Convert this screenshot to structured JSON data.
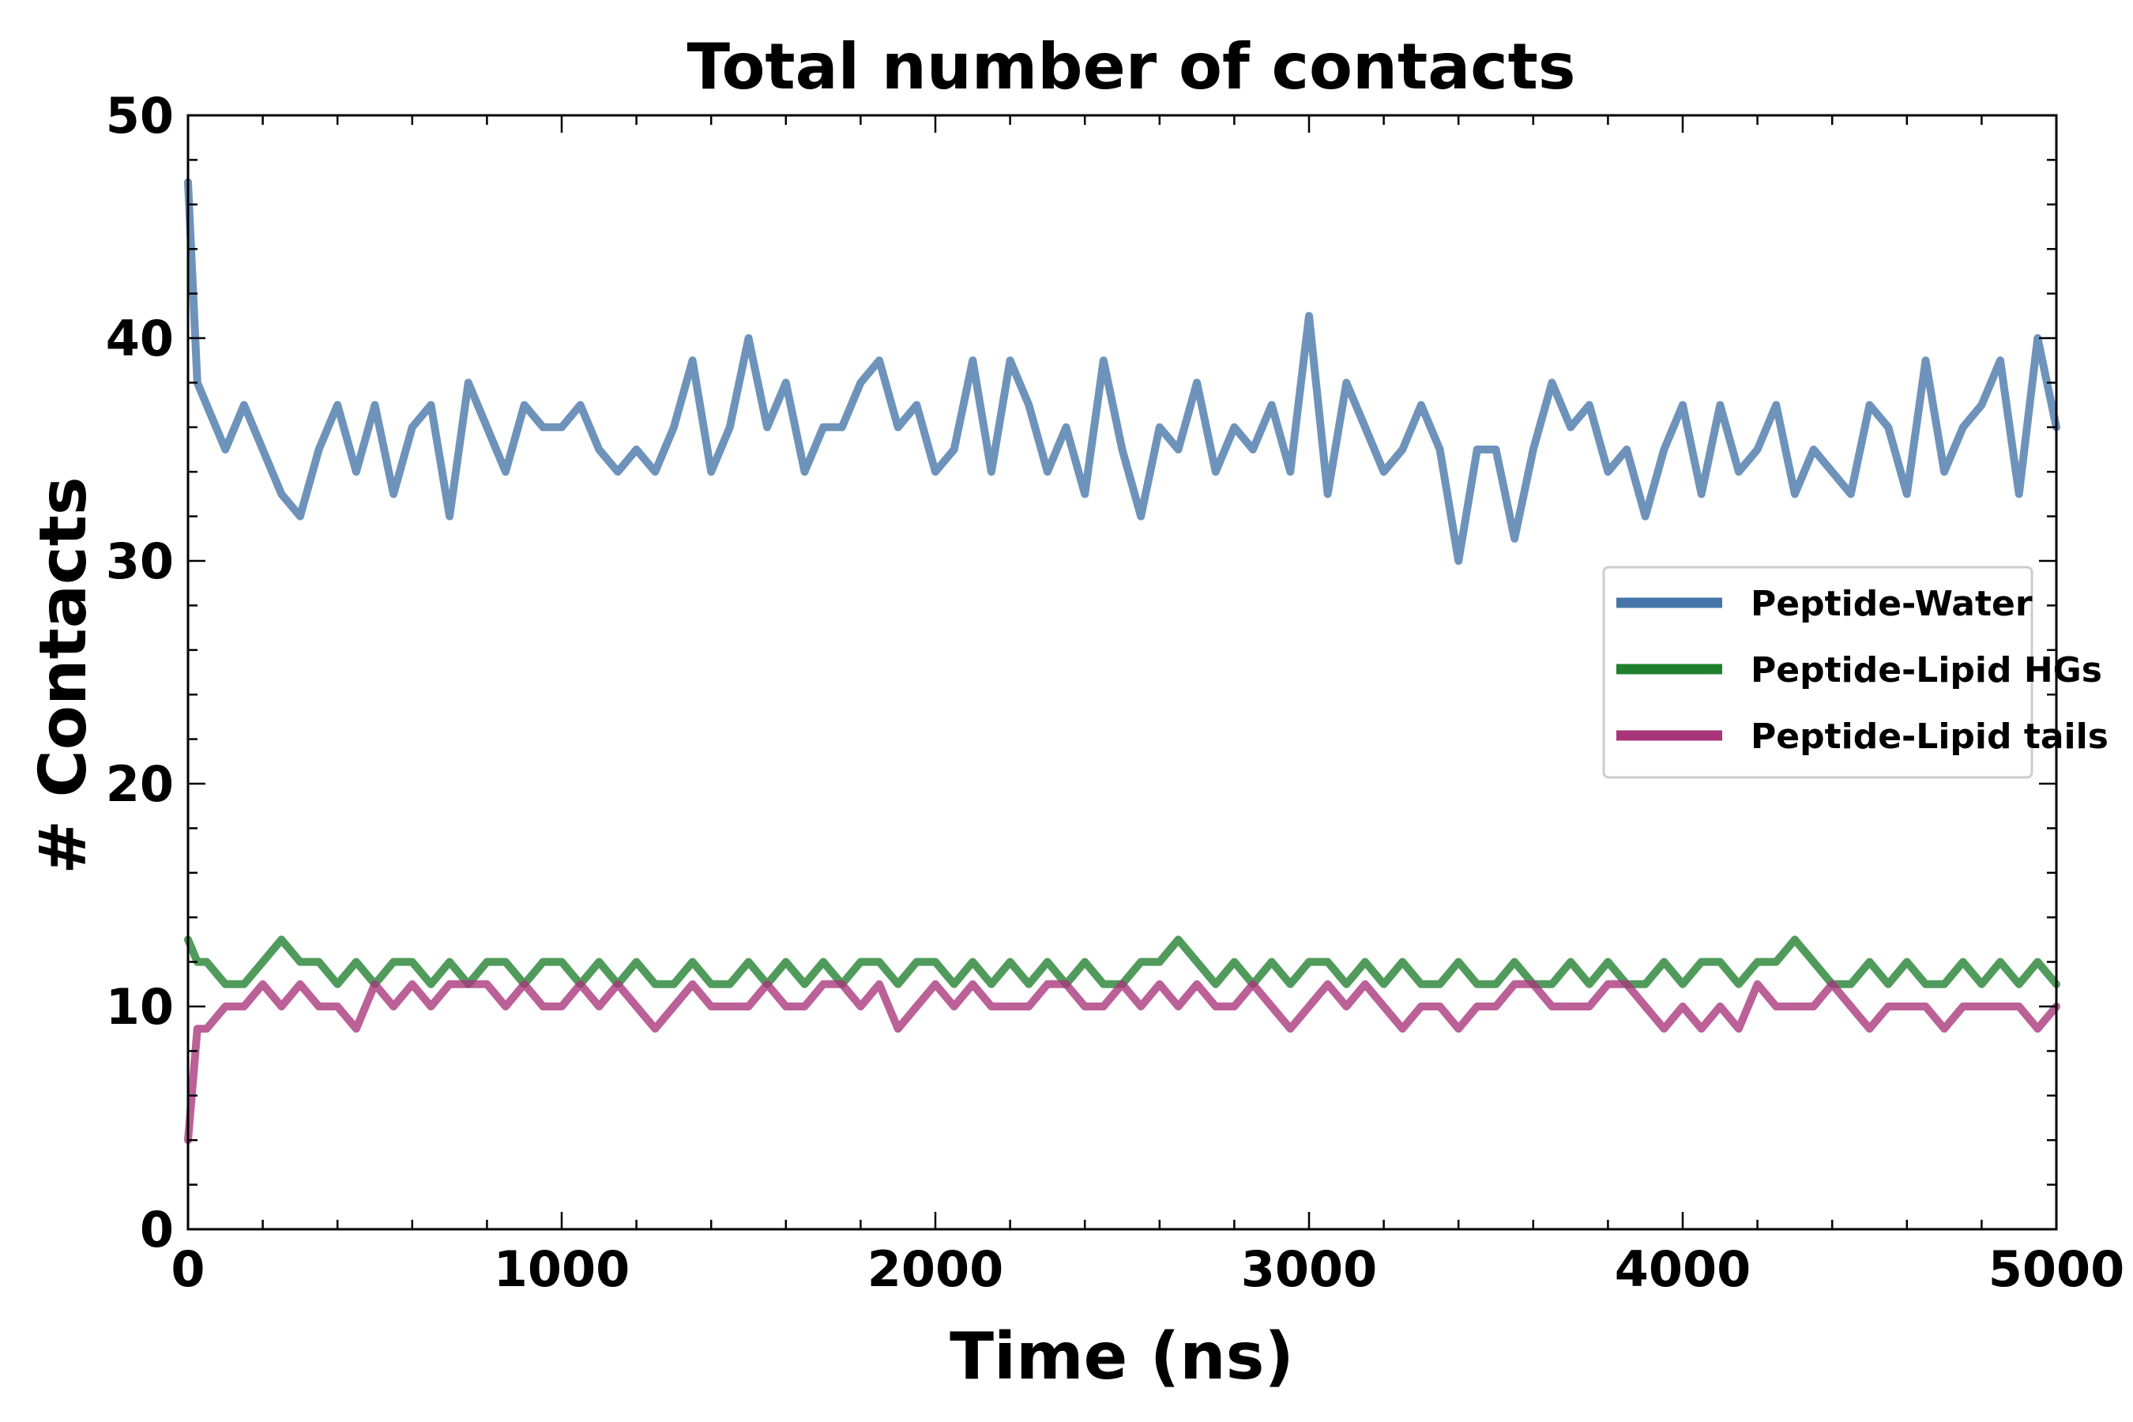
{
  "chart_data": {
    "type": "line",
    "title": "Total number of contacts",
    "xlabel": "Time (ns)",
    "ylabel": "# Contacts",
    "xlim": [
      0,
      5000
    ],
    "ylim": [
      0,
      50
    ],
    "x_ticks": [
      0,
      1000,
      2000,
      3000,
      4000,
      5000
    ],
    "y_ticks": [
      0,
      10,
      20,
      30,
      40,
      50
    ],
    "x_tick_labels": [
      "0",
      "1000",
      "2000",
      "3000",
      "4000",
      "5000"
    ],
    "y_tick_labels": [
      "0",
      "10",
      "20",
      "30",
      "40",
      "50"
    ],
    "grid": false,
    "legend_position": "center-right",
    "x": [
      0,
      25,
      50,
      100,
      150,
      200,
      250,
      300,
      350,
      400,
      450,
      500,
      550,
      600,
      650,
      700,
      750,
      800,
      850,
      900,
      950,
      1000,
      1050,
      1100,
      1150,
      1200,
      1250,
      1300,
      1350,
      1400,
      1450,
      1500,
      1550,
      1600,
      1650,
      1700,
      1750,
      1800,
      1850,
      1900,
      1950,
      2000,
      2050,
      2100,
      2150,
      2200,
      2250,
      2300,
      2350,
      2400,
      2450,
      2500,
      2550,
      2600,
      2650,
      2700,
      2750,
      2800,
      2850,
      2900,
      2950,
      3000,
      3050,
      3100,
      3150,
      3200,
      3250,
      3300,
      3350,
      3400,
      3450,
      3500,
      3550,
      3600,
      3650,
      3700,
      3750,
      3800,
      3850,
      3900,
      3950,
      4000,
      4050,
      4100,
      4150,
      4200,
      4250,
      4300,
      4350,
      4400,
      4450,
      4500,
      4550,
      4600,
      4650,
      4700,
      4750,
      4800,
      4850,
      4900,
      4950,
      5000
    ],
    "series": [
      {
        "name": "Peptide-Water",
        "color": "#4575a8",
        "values": [
          47,
          38,
          37,
          35,
          37,
          35,
          33,
          32,
          35,
          37,
          34,
          37,
          33,
          36,
          37,
          32,
          38,
          36,
          34,
          37,
          36,
          36,
          37,
          35,
          34,
          35,
          34,
          36,
          39,
          34,
          36,
          40,
          36,
          38,
          34,
          36,
          36,
          38,
          39,
          36,
          37,
          34,
          35,
          39,
          34,
          39,
          37,
          34,
          36,
          33,
          39,
          35,
          32,
          36,
          35,
          38,
          34,
          36,
          35,
          37,
          34,
          41,
          33,
          38,
          36,
          34,
          35,
          37,
          35,
          30,
          35,
          35,
          31,
          35,
          38,
          36,
          37,
          34,
          35,
          32,
          35,
          37,
          33,
          37,
          34,
          35,
          37,
          33,
          35,
          34,
          33,
          37,
          36,
          33,
          39,
          34,
          36,
          37,
          39,
          33,
          40,
          36
        ]
      },
      {
        "name": "Peptide-Lipid HGs",
        "color": "#1f7f2e",
        "values": [
          13,
          12,
          12,
          11,
          11,
          12,
          13,
          12,
          12,
          11,
          12,
          11,
          12,
          12,
          11,
          12,
          11,
          12,
          12,
          11,
          12,
          12,
          11,
          12,
          11,
          12,
          11,
          11,
          12,
          11,
          11,
          12,
          11,
          12,
          11,
          12,
          11,
          12,
          12,
          11,
          12,
          12,
          11,
          12,
          11,
          12,
          11,
          12,
          11,
          12,
          11,
          11,
          12,
          12,
          13,
          12,
          11,
          12,
          11,
          12,
          11,
          12,
          12,
          11,
          12,
          11,
          12,
          11,
          11,
          12,
          11,
          11,
          12,
          11,
          11,
          12,
          11,
          12,
          11,
          11,
          12,
          11,
          12,
          12,
          11,
          12,
          12,
          13,
          12,
          11,
          11,
          12,
          11,
          12,
          11,
          11,
          12,
          11,
          12,
          11,
          12,
          11
        ]
      },
      {
        "name": "Peptide-Lipid tails",
        "color": "#a8357a",
        "values": [
          4,
          9,
          9,
          10,
          10,
          11,
          10,
          11,
          10,
          10,
          9,
          11,
          10,
          11,
          10,
          11,
          11,
          11,
          10,
          11,
          10,
          10,
          11,
          10,
          11,
          10,
          9,
          10,
          11,
          10,
          10,
          10,
          11,
          10,
          10,
          11,
          11,
          10,
          11,
          9,
          10,
          11,
          10,
          11,
          10,
          10,
          10,
          11,
          11,
          10,
          10,
          11,
          10,
          11,
          10,
          11,
          10,
          10,
          11,
          10,
          9,
          10,
          11,
          10,
          11,
          10,
          9,
          10,
          10,
          9,
          10,
          10,
          11,
          11,
          10,
          10,
          10,
          11,
          11,
          10,
          9,
          10,
          9,
          10,
          9,
          11,
          10,
          10,
          10,
          11,
          10,
          9,
          10,
          10,
          10,
          9,
          10,
          10,
          10,
          10,
          9,
          10
        ]
      }
    ]
  }
}
